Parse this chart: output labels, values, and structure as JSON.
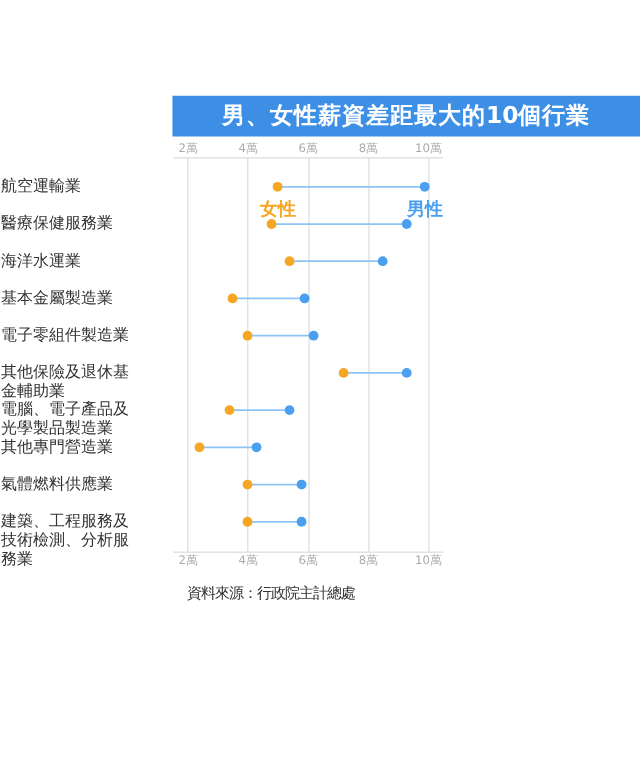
{
  "chart_data": {
    "type": "scatter",
    "title": "男、女性薪資差距最大的10個行業",
    "categories": [
      "航空運輸業",
      "醫療保健服務業",
      "海洋水運業",
      "基本金屬製造業",
      "電子零組件製造業",
      "其他保險及退休基金輔助業",
      "電腦、電子產品及光學製品製造業",
      "其他專門營造業",
      "氣體燃料供應業",
      "建築、工程服務及技術檢測、分析服務業"
    ],
    "orientation": "horizontal",
    "series": [
      {
        "name": "女性",
        "color": "#f5a623",
        "values": [
          5.0,
          4.8,
          5.4,
          3.5,
          4.0,
          7.2,
          3.4,
          2.4,
          4.0,
          4.0
        ]
      },
      {
        "name": "男性",
        "color": "#4a9ff0",
        "values": [
          9.9,
          9.3,
          8.5,
          5.9,
          6.2,
          9.3,
          5.4,
          4.3,
          5.8,
          5.8
        ]
      }
    ],
    "xlim": [
      1.5,
      10.5
    ],
    "xticks": [
      {
        "value": 2,
        "label": "2萬"
      },
      {
        "value": 4,
        "label": "4萬"
      },
      {
        "value": 6,
        "label": "6萬"
      },
      {
        "value": 8,
        "label": "8萬"
      },
      {
        "value": 10,
        "label": "10萬"
      }
    ],
    "x2lim": [
      1.5,
      10.5
    ],
    "x2ticks": [
      {
        "value": 2,
        "label": "2萬"
      },
      {
        "value": 4,
        "label": "4萬"
      },
      {
        "value": 6,
        "label": "6萬"
      },
      {
        "value": 8,
        "label": "8萬"
      },
      {
        "value": 10,
        "label": "10萬"
      }
    ],
    "grid": "x",
    "legend": false,
    "marker": "circle",
    "annotations": [
      "資料來源：行政院主計總處"
    ]
  }
}
